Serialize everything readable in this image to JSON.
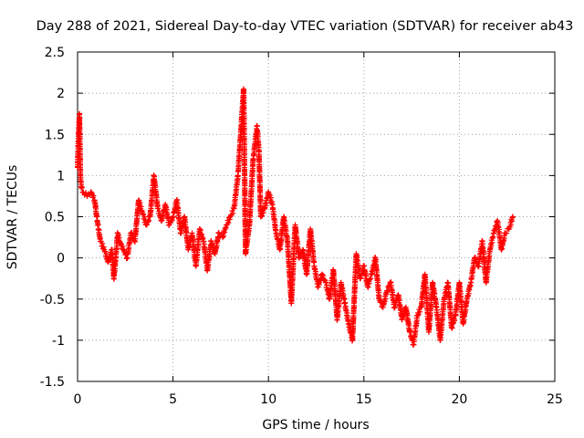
{
  "chart_data": {
    "type": "scatter",
    "title": "Day 288 of 2021, Sidereal Day-to-day VTEC variation (SDTVAR) for receiver ab43",
    "xlabel": "GPS time / hours",
    "ylabel": "SDTVAR / TECUs",
    "xlim": [
      0,
      25
    ],
    "ylim": [
      -1.5,
      2.5
    ],
    "xticks": [
      "0",
      "5",
      "10",
      "15",
      "20",
      "25"
    ],
    "yticks": [
      "-1.5",
      "-1",
      "-0.5",
      "0",
      "0.5",
      "1",
      "1.5",
      "2",
      "2.5"
    ],
    "grid": true,
    "marker": "+",
    "color": "#ff0000",
    "series": [
      {
        "name": "SDTVAR",
        "x": [
          0.0,
          0.05,
          0.1,
          0.15,
          0.2,
          0.3,
          0.5,
          0.7,
          0.9,
          1.0,
          1.1,
          1.2,
          1.4,
          1.6,
          1.8,
          1.9,
          2.0,
          2.1,
          2.2,
          2.4,
          2.6,
          2.8,
          3.0,
          3.2,
          3.4,
          3.6,
          3.8,
          4.0,
          4.2,
          4.4,
          4.6,
          4.8,
          5.0,
          5.2,
          5.4,
          5.6,
          5.8,
          6.0,
          6.2,
          6.4,
          6.6,
          6.8,
          7.0,
          7.2,
          7.4,
          7.6,
          7.8,
          8.0,
          8.2,
          8.4,
          8.6,
          8.7,
          8.8,
          9.0,
          9.2,
          9.4,
          9.5,
          9.6,
          9.8,
          10.0,
          10.2,
          10.4,
          10.6,
          10.8,
          11.0,
          11.2,
          11.4,
          11.6,
          11.8,
          12.0,
          12.2,
          12.4,
          12.6,
          12.8,
          13.0,
          13.2,
          13.4,
          13.6,
          13.8,
          14.0,
          14.2,
          14.4,
          14.6,
          14.8,
          15.0,
          15.2,
          15.4,
          15.6,
          15.8,
          16.0,
          16.2,
          16.4,
          16.6,
          16.8,
          17.0,
          17.2,
          17.4,
          17.6,
          17.8,
          18.0,
          18.2,
          18.4,
          18.6,
          18.8,
          19.0,
          19.2,
          19.4,
          19.6,
          19.8,
          20.0,
          20.2,
          20.4,
          20.6,
          20.8,
          21.0,
          21.2,
          21.4,
          21.6,
          21.8,
          22.0,
          22.2,
          22.4,
          22.6,
          22.8
        ],
        "y": [
          1.1,
          1.5,
          1.75,
          1.0,
          0.85,
          0.8,
          0.75,
          0.8,
          0.7,
          0.5,
          0.35,
          0.2,
          0.1,
          -0.05,
          0.1,
          -0.25,
          0.0,
          0.3,
          0.2,
          0.1,
          0.0,
          0.3,
          0.2,
          0.7,
          0.55,
          0.4,
          0.5,
          1.0,
          0.6,
          0.45,
          0.65,
          0.4,
          0.5,
          0.7,
          0.3,
          0.5,
          0.1,
          0.3,
          -0.1,
          0.35,
          0.2,
          -0.15,
          0.2,
          0.05,
          0.3,
          0.25,
          0.4,
          0.5,
          0.6,
          1.0,
          1.7,
          2.05,
          0.05,
          0.4,
          1.2,
          1.6,
          1.3,
          0.5,
          0.6,
          0.8,
          0.65,
          0.3,
          0.1,
          0.5,
          0.2,
          -0.55,
          0.4,
          0.0,
          0.1,
          -0.2,
          0.35,
          -0.1,
          -0.35,
          -0.2,
          -0.3,
          -0.5,
          -0.15,
          -0.75,
          -0.3,
          -0.55,
          -0.8,
          -1.0,
          0.05,
          -0.25,
          -0.1,
          -0.35,
          -0.2,
          0.0,
          -0.5,
          -0.6,
          -0.4,
          -0.3,
          -0.6,
          -0.45,
          -0.75,
          -0.6,
          -0.9,
          -1.05,
          -0.7,
          -0.6,
          -0.2,
          -0.9,
          -0.3,
          -0.6,
          -1.0,
          -0.5,
          -0.3,
          -0.85,
          -0.7,
          -0.3,
          -0.8,
          -0.5,
          -0.3,
          0.0,
          -0.1,
          0.2,
          -0.3,
          0.1,
          0.3,
          0.45,
          0.1,
          0.3,
          0.35,
          0.5
        ]
      }
    ]
  }
}
